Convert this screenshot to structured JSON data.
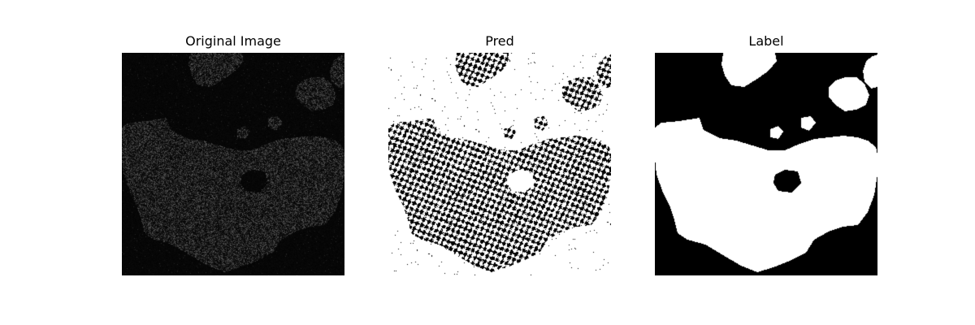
{
  "figure": {
    "panels": [
      {
        "title": "Original Image",
        "kind": "original"
      },
      {
        "title": "Pred",
        "kind": "pred"
      },
      {
        "title": "Label",
        "kind": "label"
      }
    ]
  },
  "colors": {
    "background": "#ffffff",
    "foreground": "#ffffff",
    "mask_background": "#000000",
    "original_bg": "#060606"
  }
}
